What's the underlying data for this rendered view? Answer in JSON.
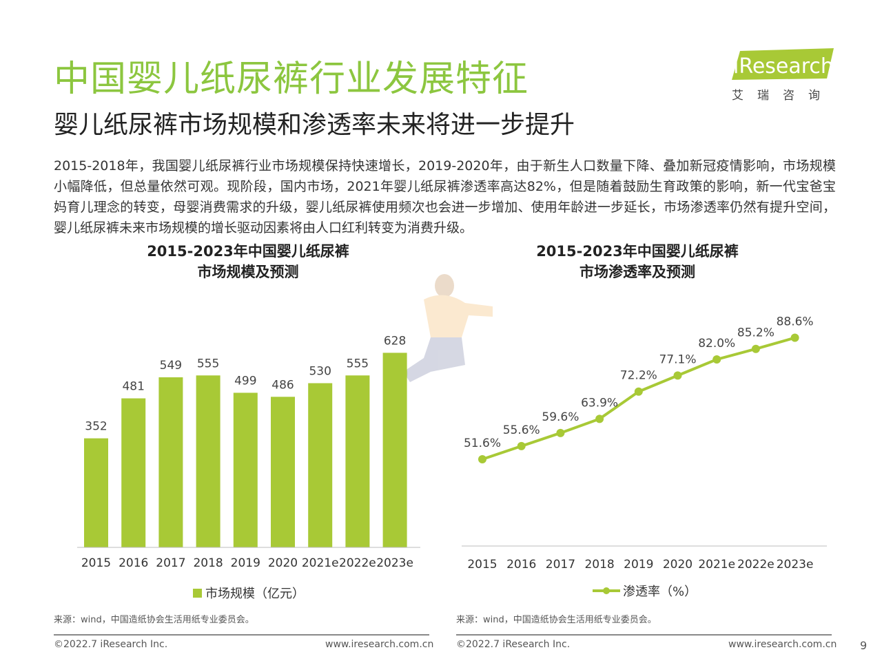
{
  "header": {
    "title": "中国婴儿纸尿裤行业发展特征",
    "subtitle": "婴儿纸尿裤市场规模和渗透率未来将进一步提升",
    "intro": "2015-2018年，我国婴儿纸尿裤行业市场规模保持快速增长，2019-2020年，由于新生人口数量下降、叠加新冠疫情影响，市场规模小幅降低，但总量依然可观。现阶段，国内市场，2021年婴儿纸尿裤渗透率高达82%，但是随着鼓励生育政策的影响，新一代宝爸宝妈育儿理念的转变，母婴消费需求的升级，婴儿纸尿裤使用频次也会进一步增加、使用年龄进一步延长，市场渗透率仍然有提升空间，婴儿纸尿裤未来市场规模的增长驱动因素将由人口红利转变为消费升级。"
  },
  "logo": {
    "word": "iResearch",
    "sub": "艾瑞咨询"
  },
  "colors": {
    "accent": "#8cc63f",
    "bar": "#a8c936",
    "line": "#a8c936"
  },
  "chart_data": [
    {
      "type": "bar",
      "title_line1": "2015-2023年中国婴儿纸尿裤",
      "title_line2": "市场规模及预测",
      "categories": [
        "2015",
        "2016",
        "2017",
        "2018",
        "2019",
        "2020",
        "2021e",
        "2022e",
        "2023e"
      ],
      "series": [
        {
          "name": "市场规模（亿元）",
          "values": [
            352,
            481,
            549,
            555,
            499,
            486,
            530,
            555,
            628
          ]
        }
      ],
      "ylim": [
        0,
        700
      ],
      "legend_position": "bottom",
      "grid": false
    },
    {
      "type": "line",
      "title_line1": "2015-2023年中国婴儿纸尿裤",
      "title_line2": "市场渗透率及预测",
      "categories": [
        "2015",
        "2016",
        "2017",
        "2018",
        "2019",
        "2020",
        "2021e",
        "2022e",
        "2023e"
      ],
      "series": [
        {
          "name": "渗透率（%）",
          "values": [
            51.6,
            55.6,
            59.6,
            63.9,
            72.2,
            77.1,
            82.0,
            85.2,
            88.6
          ],
          "labels": [
            "51.6%",
            "55.6%",
            "59.6%",
            "63.9%",
            "72.2%",
            "77.1%",
            "82.0%",
            "85.2%",
            "88.6%"
          ]
        }
      ],
      "ylim": [
        30,
        95
      ],
      "legend_position": "bottom",
      "grid": false
    }
  ],
  "footer": {
    "source_left": "来源：wind，中国造纸协会生活用纸专业委员会。",
    "source_right": "来源：wind，中国造纸协会生活用纸专业委员会。",
    "copyright_left": "©2022.7 iResearch Inc.",
    "url_left": "www.iresearch.com.cn",
    "copyright_right": "©2022.7 iResearch Inc.",
    "url_right": "www.iresearch.com.cn",
    "page_number": "9"
  }
}
